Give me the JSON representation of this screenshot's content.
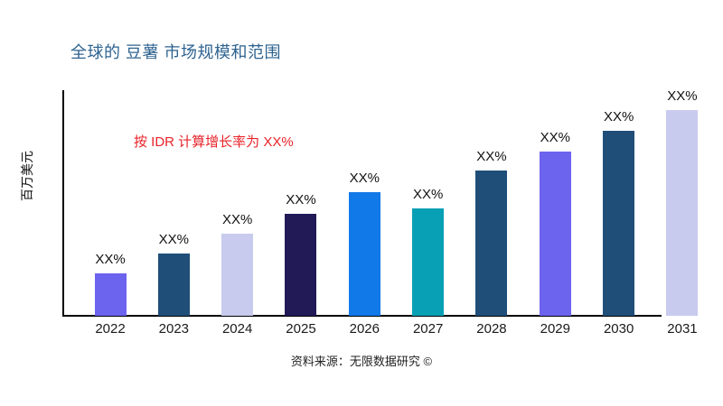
{
  "title": "全球的 豆薯 市场规模和范围",
  "annotation": "按 IDR 计算增长率为 XX%",
  "source": "资料来源：无限数据研究 ©",
  "colors": {
    "title": "#2e6390",
    "annotation": "#e8232a",
    "axis": "#000000"
  },
  "chart_data": {
    "type": "bar",
    "title": "全球的 豆薯 市场规模和范围",
    "xlabel": "",
    "ylabel": "百万美元",
    "categories": [
      "2022",
      "2023",
      "2024",
      "2025",
      "2026",
      "2027",
      "2028",
      "2029",
      "2030",
      "2031"
    ],
    "values": [
      47,
      69,
      91,
      113,
      137,
      119,
      161,
      182,
      205,
      228
    ],
    "bar_labels": [
      "XX%",
      "XX%",
      "XX%",
      "XX%",
      "XX%",
      "XX%",
      "XX%",
      "XX%",
      "XX%",
      "XX%"
    ],
    "bar_colors": [
      "#6c63ee",
      "#1f4e79",
      "#c8cbee",
      "#211a57",
      "#1179e8",
      "#08a0b4",
      "#1f4e79",
      "#6c63ee",
      "#1f4e79",
      "#c8cbee"
    ],
    "ylim": [
      0,
      250
    ],
    "grid": false,
    "legend": false,
    "annotation": "按 IDR 计算增长率为 XX%"
  }
}
